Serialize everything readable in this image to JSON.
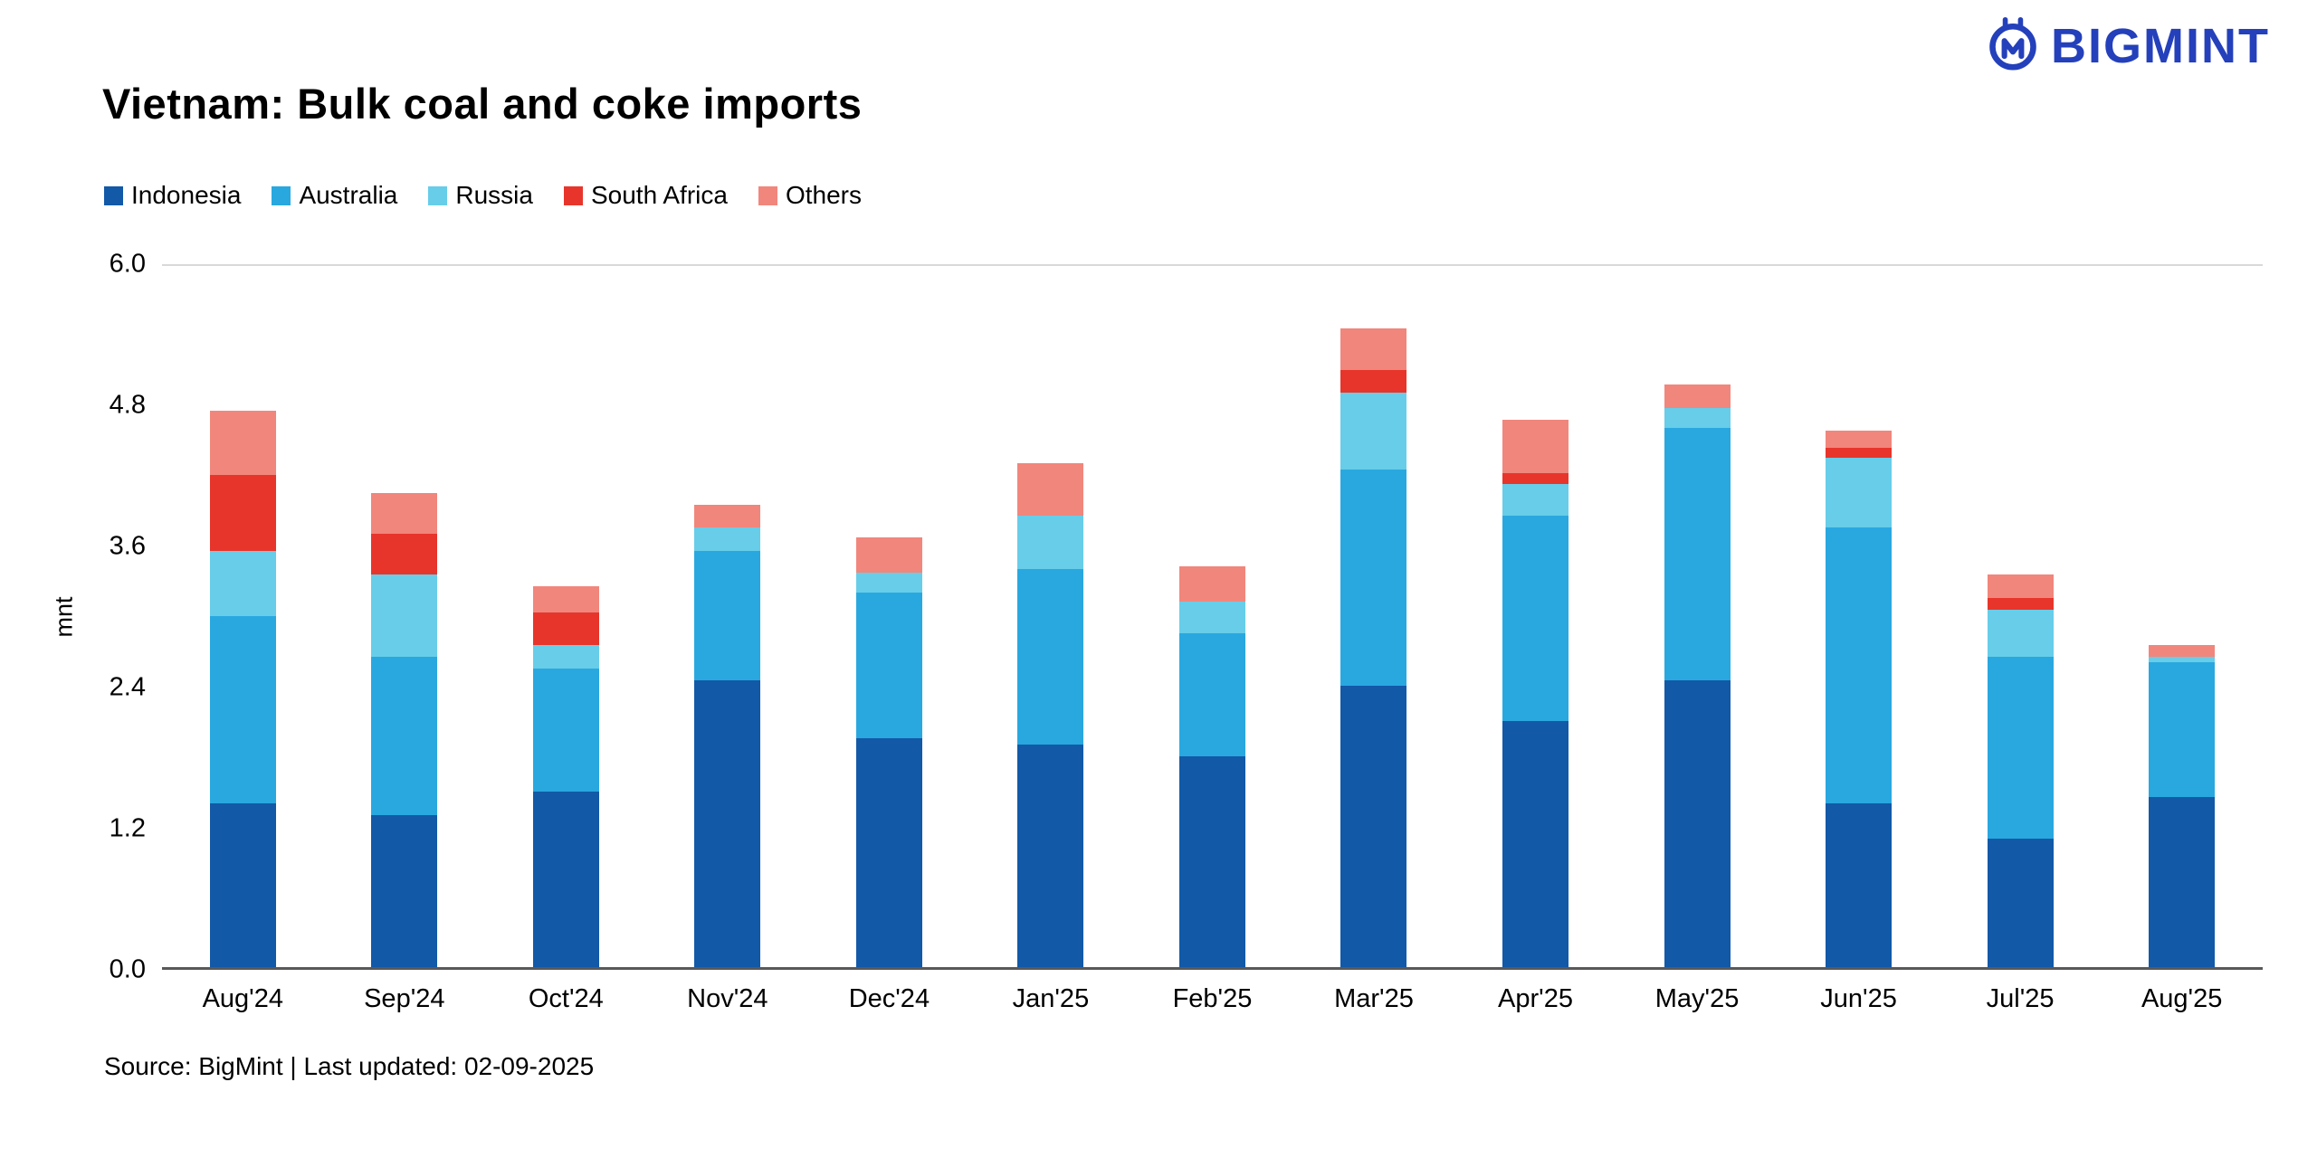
{
  "header": {
    "brand": "BIGMINT",
    "brand_color": "#2440bb"
  },
  "title": "Vietnam: Bulk coal and coke imports",
  "footer": {
    "source": "Source: BigMint | Last updated: 02-09-2025"
  },
  "chart_data": {
    "type": "bar",
    "stacked": true,
    "title": "Vietnam: Bulk coal and coke imports",
    "xlabel": "",
    "ylabel": "mnt",
    "ylim": [
      0,
      6.0
    ],
    "yticks": [
      0.0,
      1.2,
      2.4,
      3.6,
      4.8,
      6.0
    ],
    "grid": "top boundary line at 6.0 and baseline at 0.0 only",
    "legend_position": "top-left",
    "categories": [
      "Aug'24",
      "Sep'24",
      "Oct'24",
      "Nov'24",
      "Dec'24",
      "Jan'25",
      "Feb'25",
      "Mar'25",
      "Apr'25",
      "May'25",
      "Jun'25",
      "Jul'25",
      "Aug'25"
    ],
    "series": [
      {
        "name": "Indonesia",
        "color": "#1259a8",
        "values": [
          1.4,
          1.3,
          1.5,
          2.45,
          1.95,
          1.9,
          1.8,
          2.4,
          2.1,
          2.45,
          1.4,
          1.1,
          1.45
        ]
      },
      {
        "name": "Australia",
        "color": "#29a8e0",
        "values": [
          1.6,
          1.35,
          1.05,
          1.1,
          1.25,
          1.5,
          1.05,
          1.85,
          1.75,
          2.15,
          2.35,
          1.55,
          1.15
        ]
      },
      {
        "name": "Russia",
        "color": "#67cde9",
        "values": [
          0.55,
          0.7,
          0.2,
          0.2,
          0.17,
          0.45,
          0.27,
          0.65,
          0.27,
          0.17,
          0.6,
          0.4,
          0.05
        ]
      },
      {
        "name": "South Africa",
        "color": "#e8352b",
        "values": [
          0.65,
          0.35,
          0.28,
          0.0,
          0.0,
          0.0,
          0.0,
          0.2,
          0.1,
          0.0,
          0.08,
          0.1,
          0.0
        ]
      },
      {
        "name": "Others",
        "color": "#f1867c",
        "values": [
          0.55,
          0.35,
          0.22,
          0.2,
          0.3,
          0.45,
          0.3,
          0.35,
          0.45,
          0.2,
          0.15,
          0.2,
          0.1
        ]
      }
    ]
  }
}
